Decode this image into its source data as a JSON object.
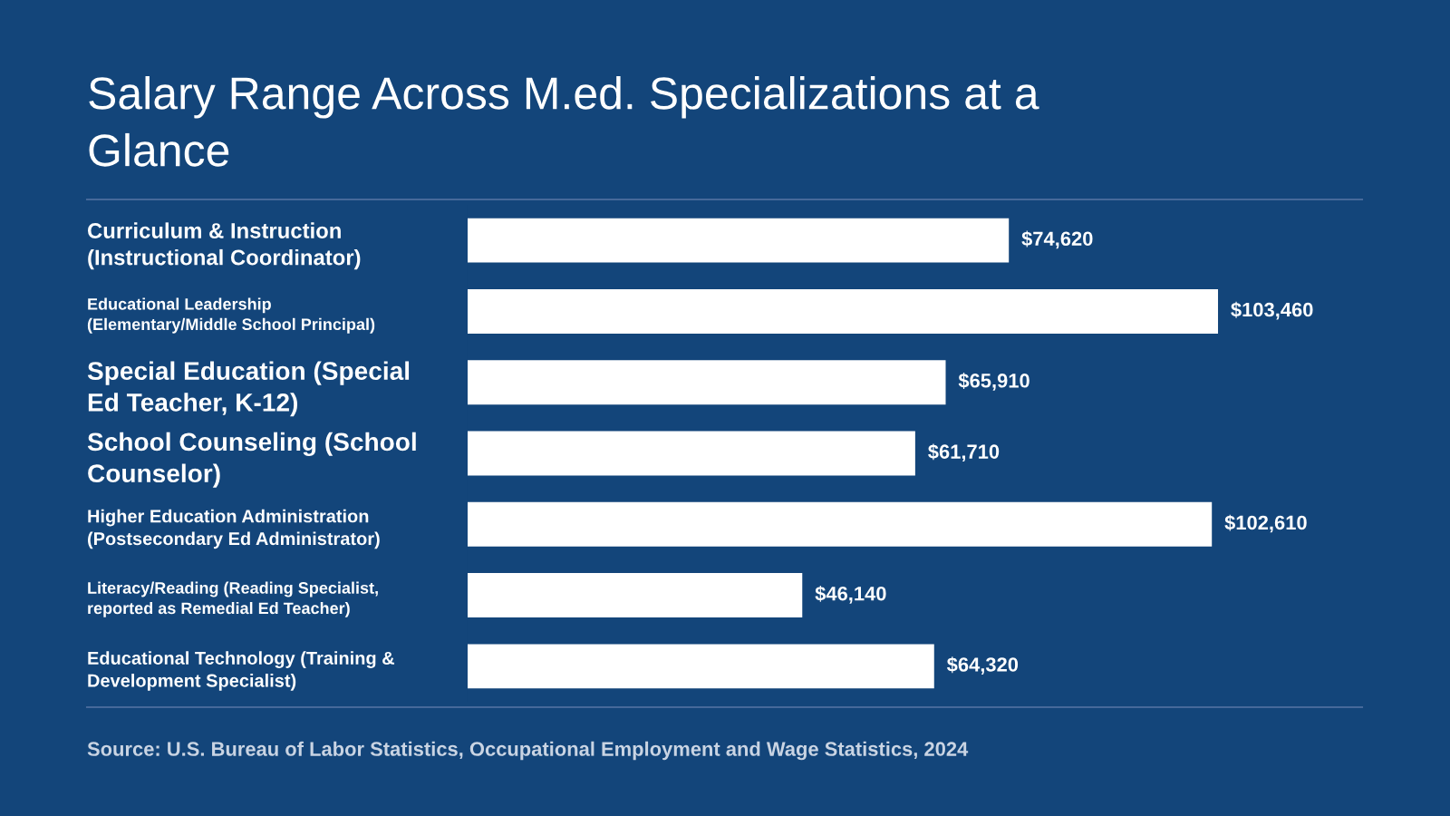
{
  "chart_data": {
    "type": "bar",
    "orientation": "horizontal",
    "title": "Salary Range Across M.ed. Specializations at a\nGlance",
    "categories": [
      "Curriculum & Instruction\n(Instructional Coordinator)",
      "Educational Leadership\n(Elementary/Middle School Principal)",
      "Special Education (Special\nEd Teacher, K-12)",
      "School Counseling (School\nCounselor)",
      "Higher Education Administration\n(Postsecondary Ed Administrator)",
      "Literacy/Reading (Reading Specialist,\nreported as Remedial Ed Teacher)",
      "Educational Technology (Training &\nDevelopment Specialist)"
    ],
    "values": [
      74620,
      103460,
      65910,
      61710,
      102610,
      46140,
      64320
    ],
    "value_labels": [
      "$74,620",
      "$103,460",
      "$65,910",
      "$61,710",
      "$102,610",
      "$46,140",
      "$64,320"
    ],
    "color": "#ffffff",
    "tick_labels": "y",
    "annotations": [
      "Source: U.S. Bureau of Labor Statistics, Occupational Employment and Wage Statistics, 2024"
    ]
  }
}
